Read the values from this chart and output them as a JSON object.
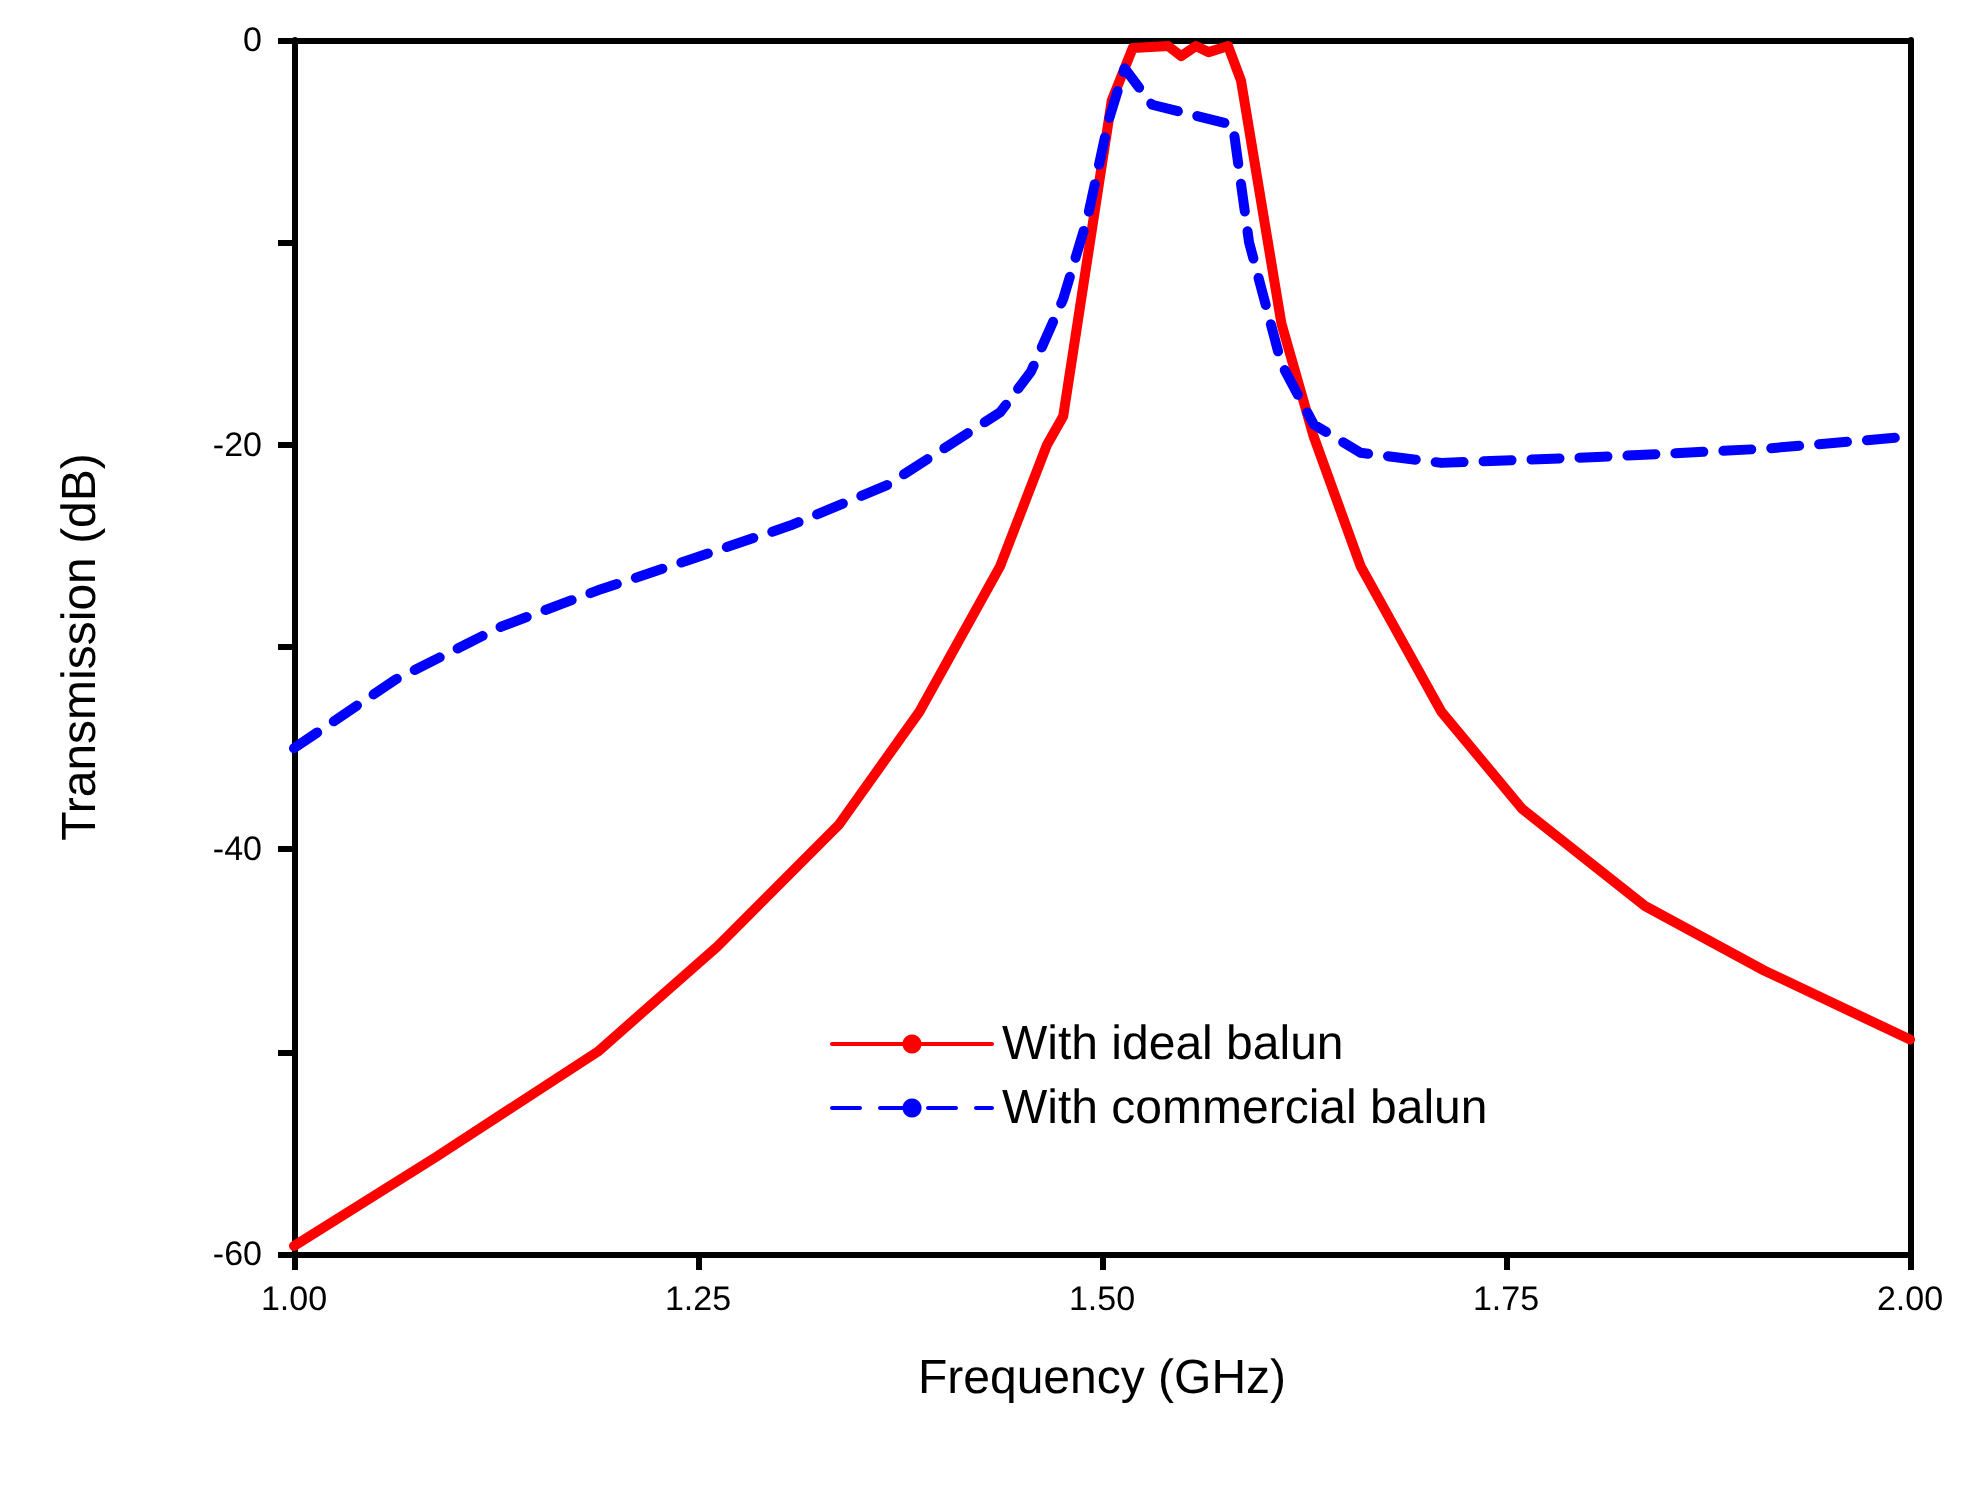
{
  "chart_data": {
    "type": "line",
    "xlabel": "Frequency (GHz)",
    "ylabel": "Transmission (dB)",
    "xlim": [
      1,
      2
    ],
    "xticks": [
      {
        "value": 1,
        "label": "1.00"
      },
      {
        "value": 1.25,
        "label": "1.25"
      },
      {
        "value": 1.5,
        "label": "1.50"
      },
      {
        "value": 1.75,
        "label": "1.75"
      },
      {
        "value": 2,
        "label": "2.00"
      }
    ],
    "ylim": [
      -60,
      0
    ],
    "yticks": [
      -60,
      {
        "value": -50,
        "label": null
      },
      -40,
      {
        "value": -30,
        "label": null
      },
      -20,
      {
        "value": -10,
        "label": null
      },
      0
    ],
    "grid": false,
    "legend": "bottom",
    "marker": "none",
    "series": [
      {
        "name": "With ideal balun",
        "color": "#ff0000",
        "line_style": "solid",
        "x": [
          1.0,
          1.088,
          1.188,
          1.262,
          1.337,
          1.387,
          1.437,
          1.466,
          1.476,
          1.491,
          1.506,
          1.519,
          1.541,
          1.549,
          1.558,
          1.566,
          1.578,
          1.586,
          1.596,
          1.611,
          1.631,
          1.66,
          1.71,
          1.76,
          1.836,
          1.91,
          2.0
        ],
        "values": [
          -59.6,
          -55.2,
          -50,
          -44.8,
          -38.8,
          -33.2,
          -26,
          -20,
          -18.6,
          -10.8,
          -3,
          -0.4,
          -0.3,
          -0.8,
          -0.3,
          -0.6,
          -0.3,
          -2,
          -6.8,
          -14,
          -19.6,
          -26,
          -33.2,
          -38,
          -42.8,
          -46,
          -49.4
        ]
      },
      {
        "name": "With commercial balun",
        "color": "#0000ff",
        "line_style": "dashed",
        "x": [
          1.0,
          1.063,
          1.128,
          1.188,
          1.248,
          1.307,
          1.367,
          1.437,
          1.456,
          1.476,
          1.491,
          1.504,
          1.514,
          1.531,
          1.581,
          1.591,
          1.611,
          1.631,
          1.66,
          1.71,
          1.81,
          1.91,
          2.0
        ],
        "values": [
          -35,
          -31.6,
          -29,
          -27.2,
          -25.6,
          -24,
          -22,
          -18.4,
          -16.4,
          -12.8,
          -8.8,
          -4,
          -1.4,
          -3.2,
          -4.2,
          -10,
          -16,
          -19,
          -20.4,
          -20.9,
          -20.6,
          -20.2,
          -19.6
        ]
      }
    ]
  }
}
